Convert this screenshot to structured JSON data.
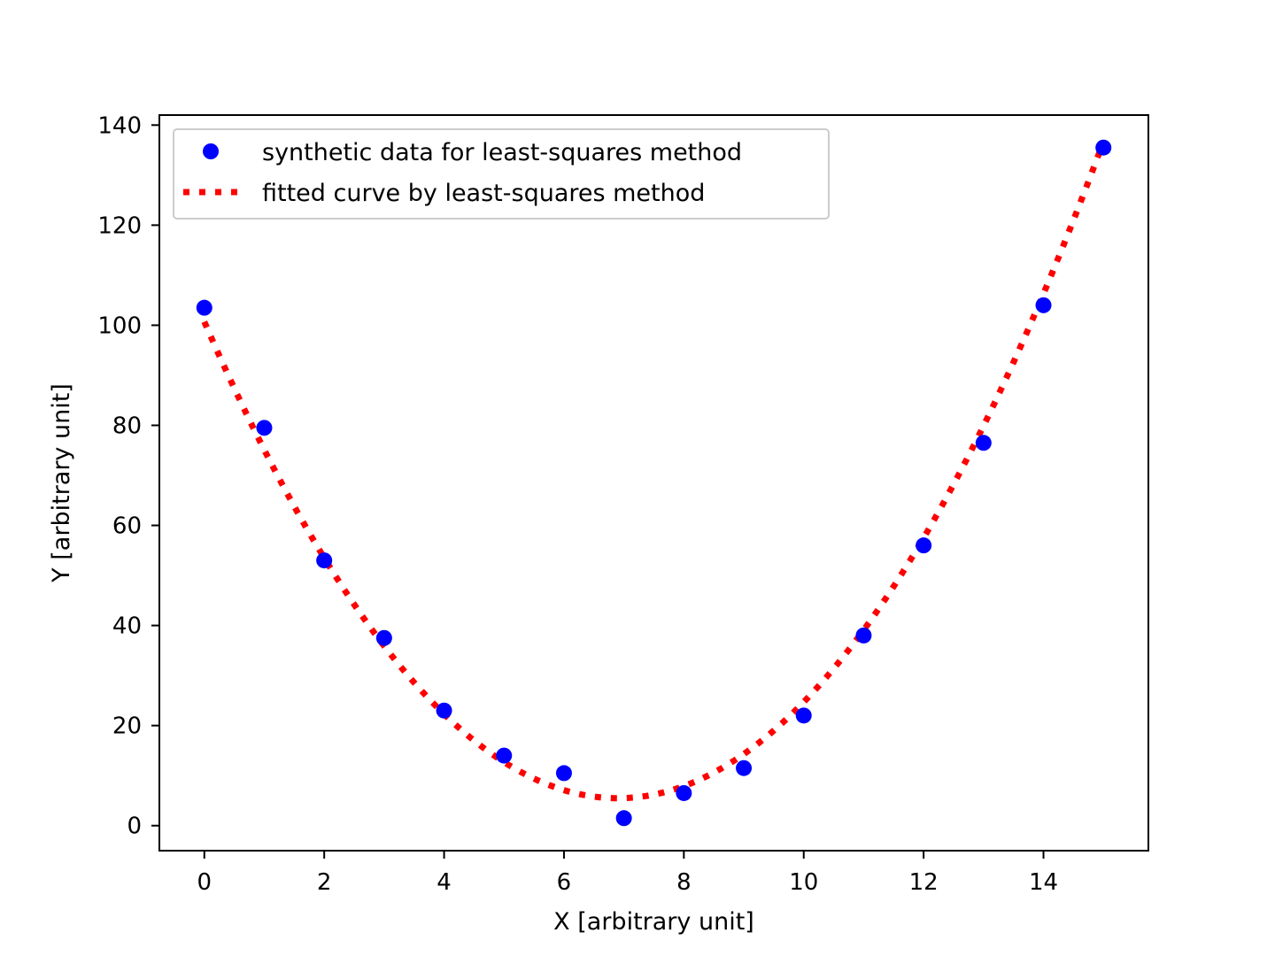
{
  "chart_data": {
    "type": "scatter",
    "title": "",
    "xlabel": "X [arbitrary unit]",
    "ylabel": "Y [arbitrary unit]",
    "xlim": [
      -0.75,
      15.75
    ],
    "ylim": [
      -5,
      142
    ],
    "xticks": [
      0,
      2,
      4,
      6,
      8,
      10,
      12,
      14
    ],
    "yticks": [
      0,
      20,
      40,
      60,
      80,
      100,
      120,
      140
    ],
    "xtick_labels": [
      "0",
      "2",
      "4",
      "6",
      "8",
      "10",
      "12",
      "14"
    ],
    "ytick_labels": [
      "0",
      "20",
      "40",
      "60",
      "80",
      "100",
      "120",
      "140"
    ],
    "grid": false,
    "legend_position": "upper-left",
    "series": [
      {
        "name": "synthetic data for least-squares method",
        "kind": "scatter",
        "color": "#0000ff",
        "marker": "circle",
        "x": [
          0,
          1,
          2,
          3,
          4,
          5,
          6,
          7,
          8,
          9,
          10,
          11,
          12,
          13,
          14,
          15
        ],
        "y": [
          103.5,
          79.5,
          53.0,
          37.5,
          23.0,
          14.0,
          10.5,
          1.5,
          6.5,
          11.5,
          22.0,
          38.0,
          56.0,
          76.5,
          104.0,
          135.5
        ]
      },
      {
        "name": "fitted curve by least-squares method",
        "kind": "line",
        "color": "#ff0000",
        "linestyle": "dotted",
        "fit": "quadratic",
        "coefficients": [
          2.0,
          -27.6,
          100.7
        ],
        "x_range": [
          0,
          15
        ]
      }
    ]
  }
}
